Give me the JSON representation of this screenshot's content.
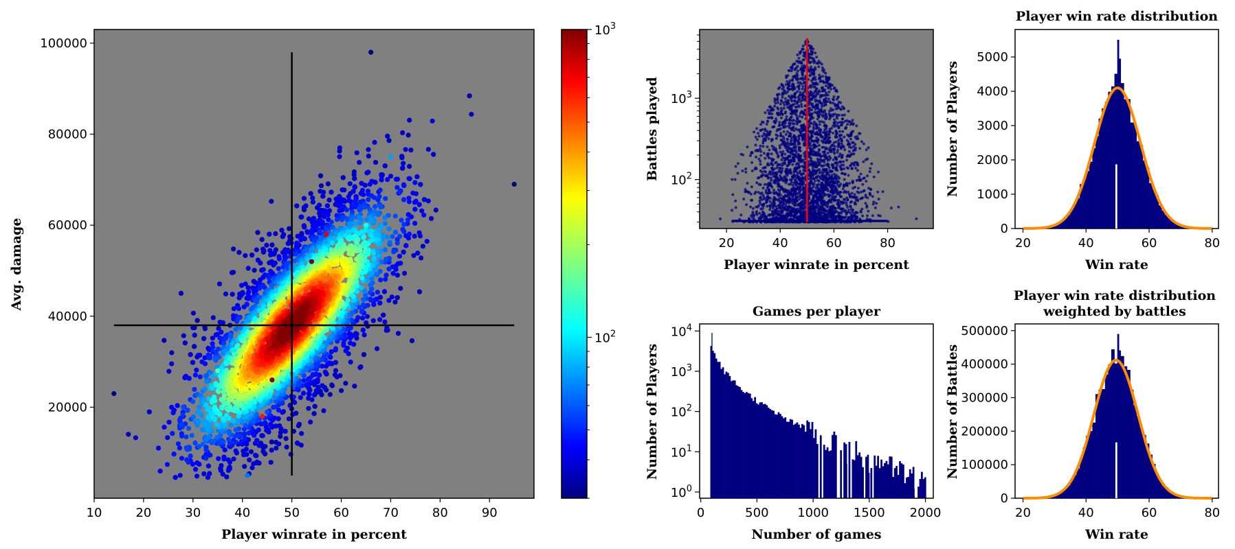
{
  "colors": {
    "panel_bg": "#808080",
    "bar": "#000080",
    "fit": "#ff8c00",
    "median": "#ff0000",
    "cross": "#000000"
  },
  "chart_data": [
    {
      "type": "scatter",
      "title": "",
      "xlabel": "Player winrate in percent",
      "ylabel": "Avg. damage",
      "xlim": [
        10,
        99
      ],
      "ylim": [
        0,
        103000
      ],
      "xticks": [
        "10",
        "20",
        "30",
        "40",
        "50",
        "60",
        "70",
        "80",
        "90"
      ],
      "yticks": [
        "20000",
        "40000",
        "60000",
        "80000",
        "100000"
      ],
      "color_by": "density",
      "colormap": "jet",
      "colorbar": {
        "scale": "log",
        "range": [
          30,
          1000
        ],
        "ticks": [
          "10^2",
          "10^3"
        ]
      },
      "crosshair": {
        "x": 50,
        "y": 38000,
        "x_range": [
          14,
          95
        ],
        "y_range": [
          5000,
          98000
        ]
      },
      "points": [
        {
          "x": 50,
          "y": 38000,
          "density": 1000
        },
        {
          "x": 54,
          "y": 52000,
          "density": 1000
        },
        {
          "x": 46,
          "y": 26000,
          "density": 1000
        },
        {
          "x": 57,
          "y": 58000,
          "density": 700
        },
        {
          "x": 44,
          "y": 18000,
          "density": 600
        },
        {
          "x": 42,
          "y": 38000,
          "density": 300
        },
        {
          "x": 60,
          "y": 45000,
          "density": 250
        },
        {
          "x": 35,
          "y": 28000,
          "density": 150
        },
        {
          "x": 65,
          "y": 60000,
          "density": 120
        },
        {
          "x": 70,
          "y": 75000,
          "density": 80
        },
        {
          "x": 28,
          "y": 20000,
          "density": 60
        },
        {
          "x": 66,
          "y": 98000,
          "density": 30
        },
        {
          "x": 95,
          "y": 69000,
          "density": 30
        },
        {
          "x": 14,
          "y": 23000,
          "density": 30
        },
        {
          "x": 41,
          "y": 5000,
          "density": 70
        }
      ]
    },
    {
      "type": "scatter",
      "title": "",
      "xlabel": "Player winrate in percent",
      "ylabel": "Battles played",
      "yscale": "log",
      "xlim": [
        10,
        97
      ],
      "ylim": [
        25,
        7000
      ],
      "xticks": [
        "20",
        "40",
        "60",
        "80"
      ],
      "yticks": [
        "10^2",
        "10^3"
      ],
      "median_line": {
        "x": 50,
        "y_range": [
          30,
          5500
        ]
      },
      "points_summary": "Player points spread 13–96 % win rate; battle counts 30 to ~5500, peaking near 50 %"
    },
    {
      "type": "bar",
      "title": "Player win rate distribution",
      "xlabel": "Win rate",
      "ylabel": "Number of Players",
      "xlim": [
        17.5,
        82
      ],
      "ylim": [
        0,
        5800
      ],
      "xticks": [
        "20",
        "40",
        "60",
        "80"
      ],
      "yticks": [
        "0",
        "1000",
        "2000",
        "3000",
        "4000",
        "5000"
      ],
      "fit": {
        "type": "gaussian",
        "mean": 50,
        "sigma": 7.3,
        "peak": 4100
      },
      "spike": {
        "x": 50,
        "value": 5500
      }
    },
    {
      "type": "bar",
      "title": "Games per player",
      "xlabel": "Number of games",
      "ylabel": "Number of Players",
      "yscale": "log",
      "xlim": [
        -10,
        2070
      ],
      "ylim": [
        0.7,
        15000
      ],
      "xticks": [
        "0",
        "500",
        "1000",
        "1500",
        "2000"
      ],
      "yticks": [
        "10^0",
        "10^1",
        "10^2",
        "10^3",
        "10^4"
      ],
      "x": [
        100,
        200,
        300,
        400,
        500,
        600,
        700,
        800,
        900,
        1000,
        1100,
        1200,
        1300,
        1400,
        1500,
        1600,
        1700,
        1800,
        1900,
        1980
      ],
      "values": [
        9000,
        800,
        250,
        120,
        70,
        50,
        35,
        25,
        18,
        12,
        8,
        6,
        5,
        4,
        3,
        2.5,
        2,
        1.5,
        1.2,
        1
      ]
    },
    {
      "type": "bar",
      "title": "Player win rate distribution\nweighted by battles",
      "xlabel": "Win rate",
      "ylabel": "Number of Battles",
      "xlim": [
        17.5,
        82
      ],
      "ylim": [
        0,
        520000
      ],
      "xticks": [
        "20",
        "40",
        "60",
        "80"
      ],
      "yticks": [
        "0",
        "100000",
        "200000",
        "300000",
        "400000",
        "500000"
      ],
      "fit": {
        "type": "gaussian",
        "mean": 49.5,
        "sigma": 7.0,
        "peak": 412000
      },
      "spike": {
        "x": 50,
        "value": 490000
      }
    }
  ]
}
